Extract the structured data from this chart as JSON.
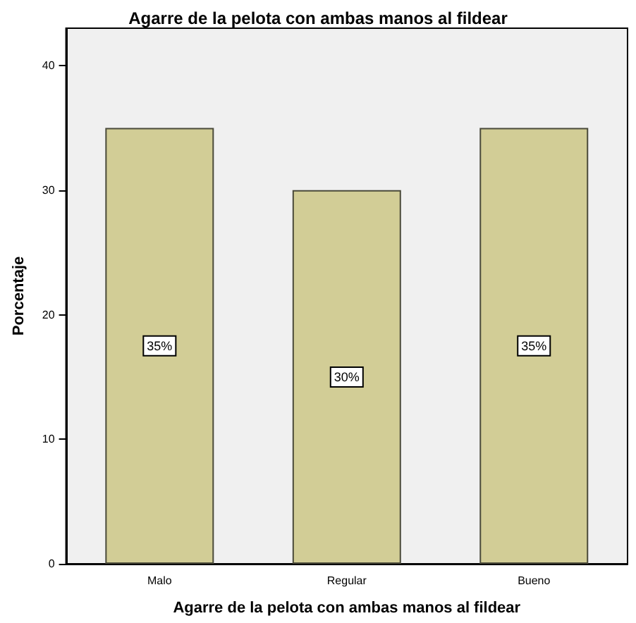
{
  "chart_data": {
    "type": "bar",
    "title": "Agarre de la pelota con ambas manos al fildear",
    "xlabel": "Agarre de la pelota con ambas manos al fildear",
    "ylabel": "Porcentaje",
    "categories": [
      "Malo",
      "Regular",
      "Bueno"
    ],
    "values": [
      35,
      30,
      35
    ],
    "value_labels": [
      "35%",
      "30%",
      "35%"
    ],
    "color": "#d2cd96",
    "ylim": [
      0,
      43
    ],
    "yticks": [
      0,
      10,
      20,
      30,
      40
    ],
    "grid": false
  }
}
